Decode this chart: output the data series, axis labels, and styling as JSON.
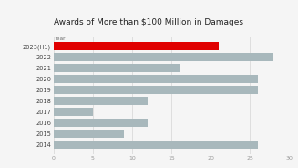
{
  "title": "Awards of More than $100 Million in Damages",
  "year_label": "Year",
  "categories": [
    "2023(H1)",
    "2022",
    "2021",
    "2020",
    "2019",
    "2018",
    "2017",
    "2016",
    "2015",
    "2014"
  ],
  "values": [
    21,
    28,
    16,
    26,
    26,
    12,
    5,
    12,
    9,
    26
  ],
  "bar_colors": [
    "#e00000",
    "#a8b8bc",
    "#a8b8bc",
    "#a8b8bc",
    "#a8b8bc",
    "#a8b8bc",
    "#a8b8bc",
    "#a8b8bc",
    "#a8b8bc",
    "#a8b8bc"
  ],
  "background_color": "#f5f5f5",
  "xlim": [
    0,
    30
  ],
  "bar_height": 0.75,
  "title_fontsize": 6.5,
  "label_fontsize": 4.8,
  "year_label_fontsize": 4.2,
  "xtick_fontsize": 4.5,
  "grid_color": "#cccccc"
}
